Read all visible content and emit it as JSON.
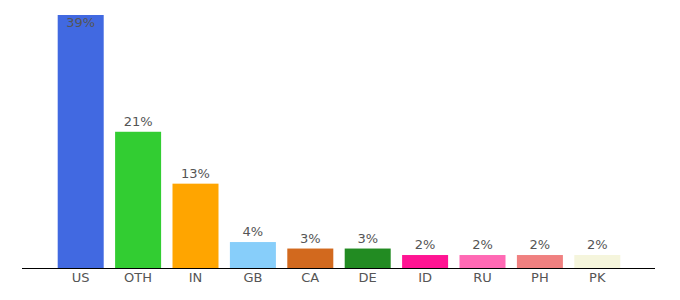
{
  "chart_data": {
    "type": "bar",
    "categories": [
      "US",
      "OTH",
      "IN",
      "GB",
      "CA",
      "DE",
      "ID",
      "RU",
      "PH",
      "PK"
    ],
    "values": [
      39,
      21,
      13,
      4,
      3,
      3,
      2,
      2,
      2,
      2
    ],
    "value_labels": [
      "39%",
      "21%",
      "13%",
      "4%",
      "3%",
      "3%",
      "2%",
      "2%",
      "2%",
      "2%"
    ],
    "colors": [
      "#4169e1",
      "#32cd32",
      "#ffa500",
      "#87cefa",
      "#d2691e",
      "#228b22",
      "#ff1493",
      "#ff69b4",
      "#f08080",
      "#f5f5dc"
    ],
    "ylim": [
      0,
      39
    ],
    "data_labels": true,
    "tick_labels": "x",
    "grid": false
  }
}
